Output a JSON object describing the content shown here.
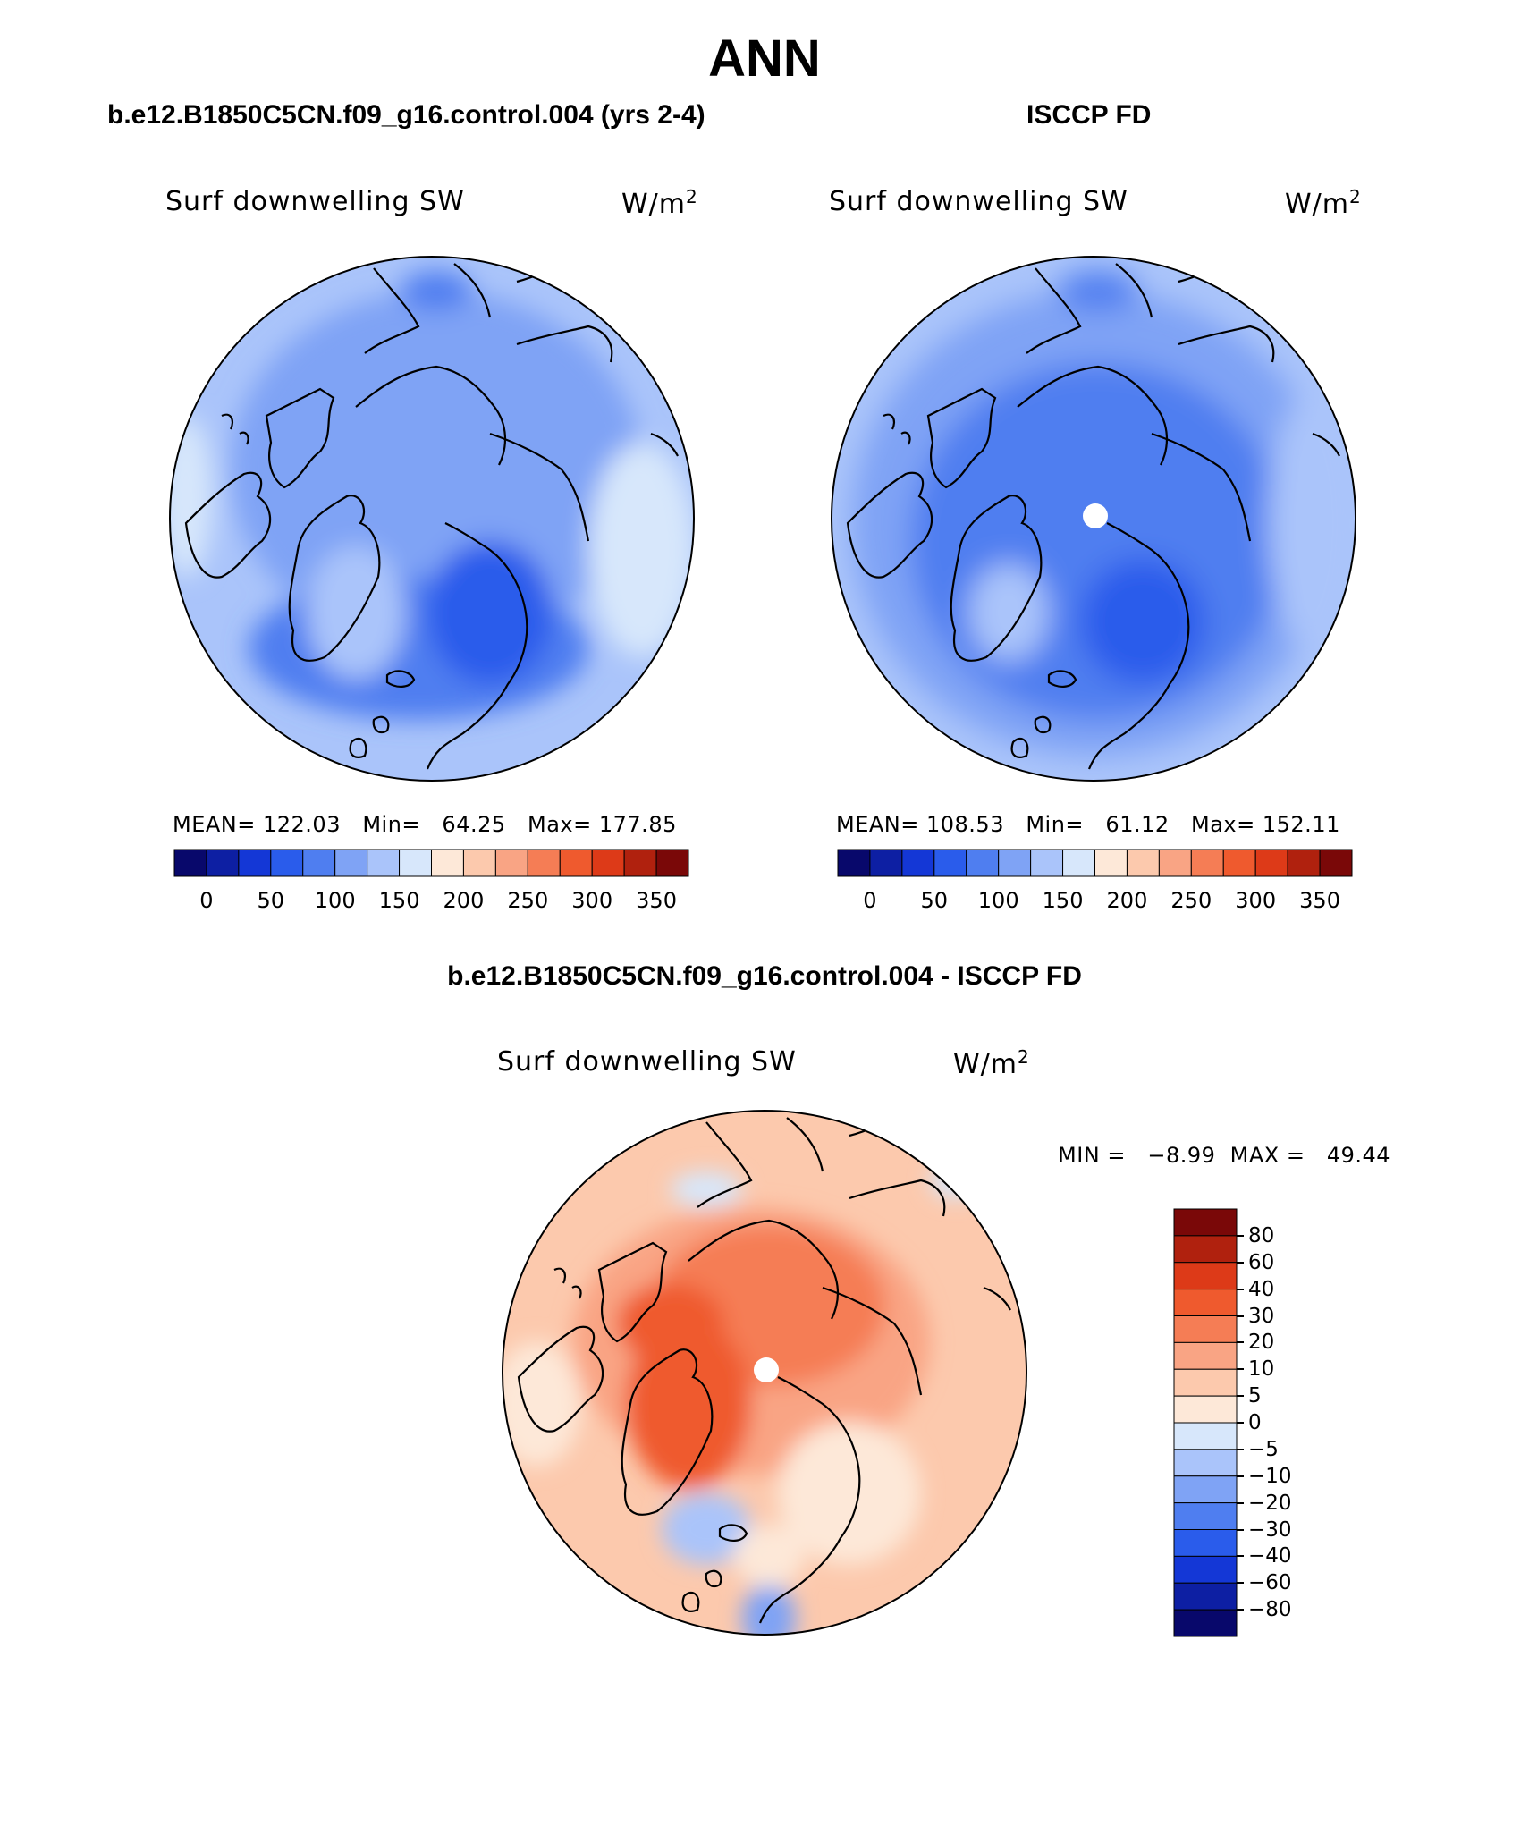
{
  "page": {
    "title": "ANN",
    "diff_title": "b.e12.B1850C5CN.f09_g16.control.004 - ISCCP FD"
  },
  "panels": [
    {
      "case_title": "b.e12.B1850C5CN.f09_g16.control.004 (yrs 2-4)",
      "variable": "Surf downwelling SW",
      "units": "W/m",
      "units_exp": "2",
      "stats": "MEAN= 122.03   Min=   64.25   Max= 177.85",
      "colorbar_ticks": [
        "0",
        "50",
        "100",
        "150",
        "200",
        "250",
        "300",
        "350"
      ]
    },
    {
      "case_title": "ISCCP FD",
      "variable": "Surf downwelling SW",
      "units": "W/m",
      "units_exp": "2",
      "stats": "MEAN= 108.53   Min=   61.12   Max= 152.11",
      "colorbar_ticks": [
        "0",
        "50",
        "100",
        "150",
        "200",
        "250",
        "300",
        "350"
      ]
    }
  ],
  "diff_panel": {
    "variable": "Surf downwelling SW",
    "units": "W/m",
    "units_exp": "2",
    "minmax": "MIN =   −8.99  MAX =   49.44",
    "colorbar_ticks": [
      "80",
      "60",
      "40",
      "30",
      "20",
      "10",
      "5",
      "0",
      "−5",
      "−10",
      "−20",
      "−30",
      "−40",
      "−60",
      "−80"
    ]
  },
  "colors": {
    "abs_scale": [
      "#08086b",
      "#0d1fa3",
      "#1437d6",
      "#2a5ceb",
      "#4f7ef0",
      "#7fa3f5",
      "#aac4fa",
      "#d7e7fb",
      "#fde8d8",
      "#fcc9ad",
      "#f9a484",
      "#f57d55",
      "#ef5a2e",
      "#dd3a18",
      "#b0210e",
      "#7a0808"
    ],
    "diff_scale": [
      "#7a0808",
      "#b0210e",
      "#dd3a18",
      "#ef5a2e",
      "#f57d55",
      "#f9a484",
      "#fcc9ad",
      "#fde8d8",
      "#d7e7fb",
      "#aac4fa",
      "#7fa3f5",
      "#4f7ef0",
      "#2a5ceb",
      "#1437d6",
      "#0d1fa3",
      "#08086b"
    ]
  }
}
